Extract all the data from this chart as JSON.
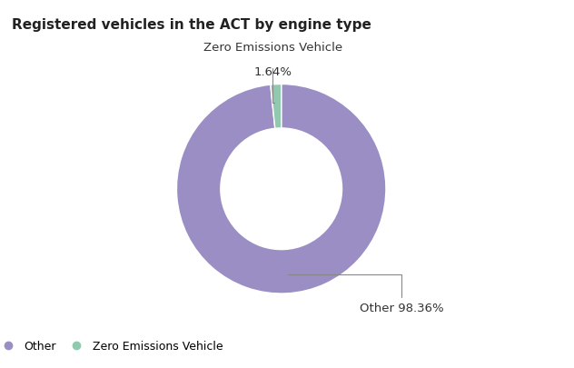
{
  "title": "Registered vehicles in the ACT by engine type",
  "slices": [
    98.36,
    1.64
  ],
  "colors": [
    "#9B8EC4",
    "#90C9AD"
  ],
  "legend_colors": [
    "#9B8EC4",
    "#90C9AD"
  ],
  "legend_labels": [
    "Other",
    "Zero Emissions Vehicle"
  ],
  "annotation_other": "Other 98.36%",
  "annotation_zev_line1": "Zero Emissions Vehicle",
  "annotation_zev_line2": "1.64%",
  "background_color": "#ffffff",
  "title_fontsize": 11,
  "label_fontsize": 9.5,
  "legend_fontsize": 9,
  "donut_width": 0.42
}
